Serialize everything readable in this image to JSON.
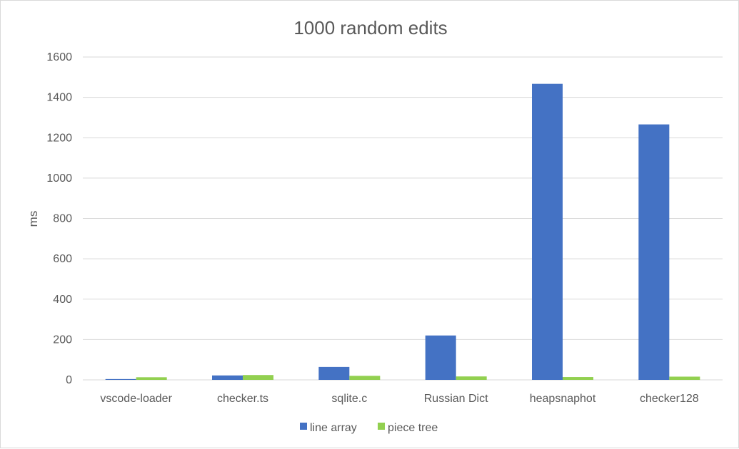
{
  "chart_data": {
    "type": "bar",
    "title": "1000 random edits",
    "xlabel": "",
    "ylabel": "ms",
    "categories": [
      "vscode-loader",
      "checker.ts",
      "sqlite.c",
      "Russian Dict",
      "heapsnaphot",
      "checker128"
    ],
    "series": [
      {
        "name": "line array",
        "color": "#4472C4",
        "values": [
          4,
          22,
          64,
          220,
          1467,
          1266
        ]
      },
      {
        "name": "piece tree",
        "color": "#92D050",
        "values": [
          13,
          24,
          20,
          17,
          14,
          16
        ]
      }
    ],
    "ylim": [
      0,
      1600
    ],
    "yticks": [
      0,
      200,
      400,
      600,
      800,
      1000,
      1200,
      1400,
      1600
    ],
    "grid": true,
    "legend_position": "bottom"
  }
}
